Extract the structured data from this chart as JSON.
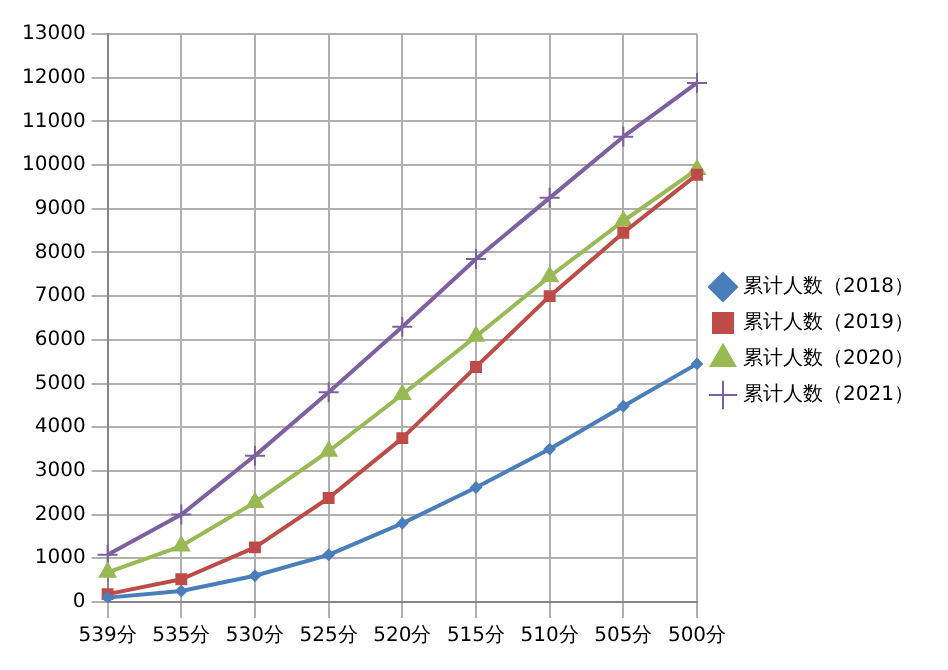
{
  "chart_data": {
    "type": "line",
    "categories": [
      "539分",
      "535分",
      "530分",
      "525分",
      "520分",
      "515分",
      "510分",
      "505分",
      "500分"
    ],
    "series": [
      {
        "name": "累计人数（2018）",
        "color": "#4a7ebb",
        "marker": "diamond",
        "values": [
          100,
          250,
          600,
          1080,
          1800,
          2620,
          3500,
          4480,
          5450
        ]
      },
      {
        "name": "累计人数（2019）",
        "color": "#be4b48",
        "marker": "square",
        "values": [
          180,
          520,
          1250,
          2380,
          3750,
          5380,
          7000,
          8450,
          9780
        ]
      },
      {
        "name": "累计人数（2020）",
        "color": "#98b954",
        "marker": "triangle",
        "values": [
          680,
          1280,
          2280,
          3450,
          4750,
          6080,
          7450,
          8720,
          9900
        ]
      },
      {
        "name": "累计人数（2021）",
        "color": "#7d60a0",
        "marker": "cross",
        "values": [
          1080,
          2000,
          3350,
          4800,
          6300,
          7850,
          9250,
          10650,
          11880
        ]
      }
    ],
    "ylim": [
      0,
      13000
    ],
    "yticks": [
      0,
      1000,
      2000,
      3000,
      4000,
      5000,
      6000,
      7000,
      8000,
      9000,
      10000,
      11000,
      12000,
      13000
    ],
    "grid": true,
    "legend": "right"
  }
}
